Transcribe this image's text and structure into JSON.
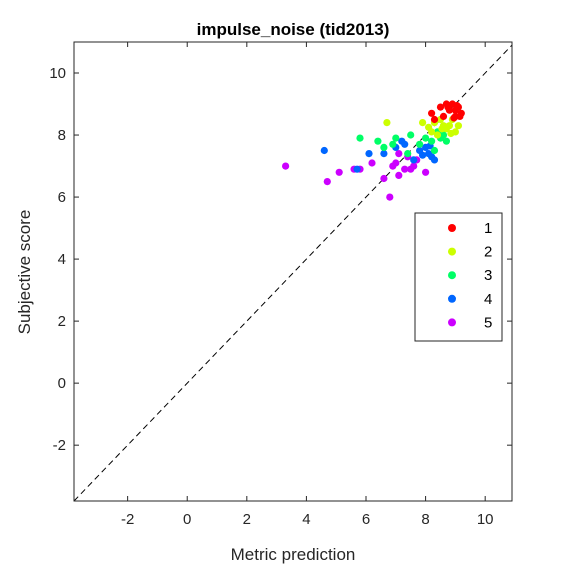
{
  "chart_data": {
    "type": "scatter",
    "title": "impulse_noise (tid2013)",
    "xlabel": "Metric prediction",
    "ylabel": "Subjective score",
    "xlim": [
      -3.8,
      10.9
    ],
    "ylim": [
      -3.8,
      11.0
    ],
    "xticks": [
      -2,
      0,
      2,
      4,
      6,
      8,
      10
    ],
    "yticks": [
      -2,
      0,
      2,
      4,
      6,
      8,
      10
    ],
    "grid": false,
    "legend_position": "right",
    "reference_line": "y = x (dashed)",
    "series": [
      {
        "name": "1",
        "color": "#ff0000",
        "points": [
          [
            8.2,
            8.7
          ],
          [
            8.5,
            8.9
          ],
          [
            8.7,
            9.0
          ],
          [
            8.8,
            8.8
          ],
          [
            8.9,
            9.0
          ],
          [
            9.0,
            8.6
          ],
          [
            9.1,
            8.9
          ],
          [
            9.2,
            8.7
          ],
          [
            9.0,
            8.8
          ],
          [
            8.6,
            8.6
          ],
          [
            8.3,
            8.5
          ],
          [
            8.95,
            8.55
          ],
          [
            9.15,
            8.6
          ],
          [
            8.75,
            8.9
          ],
          [
            9.05,
            8.95
          ]
        ]
      },
      {
        "name": "2",
        "color": "#ccff00",
        "points": [
          [
            6.7,
            8.4
          ],
          [
            7.9,
            8.4
          ],
          [
            8.2,
            8.1
          ],
          [
            8.3,
            8.4
          ],
          [
            8.5,
            8.5
          ],
          [
            8.6,
            8.3
          ],
          [
            8.7,
            8.2
          ],
          [
            8.8,
            8.3
          ],
          [
            8.9,
            8.5
          ],
          [
            9.0,
            8.1
          ],
          [
            8.4,
            8.0
          ],
          [
            8.55,
            8.2
          ],
          [
            8.1,
            8.25
          ],
          [
            8.85,
            8.05
          ],
          [
            9.1,
            8.3
          ]
        ]
      },
      {
        "name": "3",
        "color": "#00ff66",
        "points": [
          [
            5.8,
            7.9
          ],
          [
            6.4,
            7.8
          ],
          [
            6.6,
            7.6
          ],
          [
            7.0,
            7.9
          ],
          [
            7.5,
            8.0
          ],
          [
            7.8,
            7.7
          ],
          [
            8.0,
            7.9
          ],
          [
            8.2,
            7.8
          ],
          [
            8.4,
            8.1
          ],
          [
            8.5,
            7.9
          ],
          [
            8.6,
            8.0
          ],
          [
            8.7,
            7.8
          ],
          [
            7.4,
            7.4
          ],
          [
            6.9,
            7.7
          ],
          [
            8.3,
            7.5
          ]
        ]
      },
      {
        "name": "4",
        "color": "#0066ff",
        "points": [
          [
            4.6,
            7.5
          ],
          [
            5.7,
            6.9
          ],
          [
            6.1,
            7.4
          ],
          [
            6.6,
            7.4
          ],
          [
            7.0,
            7.6
          ],
          [
            7.3,
            7.7
          ],
          [
            7.6,
            7.2
          ],
          [
            7.8,
            7.5
          ],
          [
            8.0,
            7.6
          ],
          [
            8.1,
            7.4
          ],
          [
            8.2,
            7.3
          ],
          [
            8.3,
            7.2
          ],
          [
            7.2,
            7.8
          ],
          [
            7.9,
            7.35
          ],
          [
            8.15,
            7.65
          ]
        ]
      },
      {
        "name": "5",
        "color": "#cc00ff",
        "points": [
          [
            3.3,
            7.0
          ],
          [
            4.7,
            6.5
          ],
          [
            5.1,
            6.8
          ],
          [
            5.6,
            6.9
          ],
          [
            5.8,
            6.9
          ],
          [
            6.2,
            7.1
          ],
          [
            6.6,
            6.6
          ],
          [
            6.8,
            6.0
          ],
          [
            6.9,
            7.0
          ],
          [
            7.0,
            7.1
          ],
          [
            7.1,
            6.7
          ],
          [
            7.3,
            6.9
          ],
          [
            7.5,
            6.9
          ],
          [
            7.6,
            7.0
          ],
          [
            7.7,
            7.2
          ],
          [
            8.0,
            6.8
          ],
          [
            7.1,
            7.4
          ],
          [
            7.4,
            7.3
          ]
        ]
      }
    ]
  }
}
